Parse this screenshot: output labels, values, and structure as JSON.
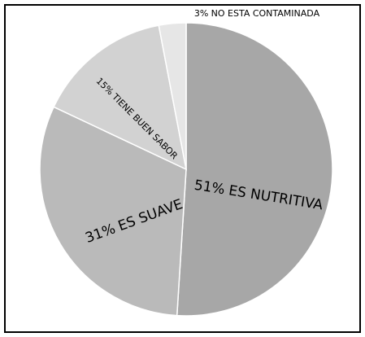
{
  "chart_data": {
    "type": "pie",
    "categories": [
      "ES NUTRITIVA",
      "ES SUAVE",
      "TIENE BUEN SABOR",
      "NO ESTA CONTAMINADA"
    ],
    "values": [
      51,
      31,
      15,
      3
    ],
    "value_labels": [
      "51%",
      "31%",
      "15%",
      "3%"
    ],
    "colors": [
      "#a7a7a7",
      "#bababa",
      "#d2d2d2",
      "#e6e6e6"
    ]
  }
}
